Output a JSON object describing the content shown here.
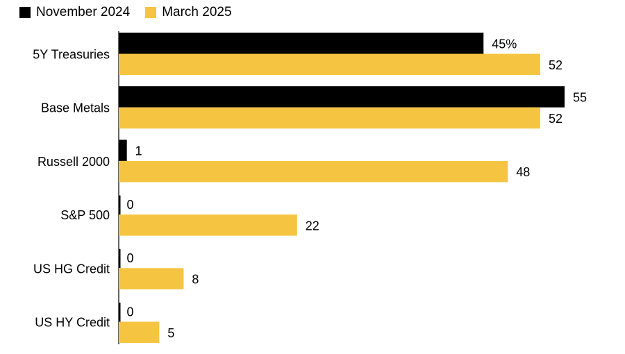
{
  "chart_data": {
    "type": "bar",
    "orientation": "horizontal",
    "categories": [
      "5Y Treasuries",
      "Base Metals",
      "Russell 2000",
      "S&P 500",
      "US HG Credit",
      "US HY Credit"
    ],
    "series": [
      {
        "name": "November 2024",
        "color": "#000000",
        "values": [
          45,
          55,
          1,
          0,
          0,
          0
        ],
        "labels": [
          "45%",
          "55",
          "1",
          "0",
          "0",
          "0"
        ]
      },
      {
        "name": "March 2025",
        "color": "#F5C542",
        "values": [
          52,
          52,
          48,
          22,
          8,
          5
        ],
        "labels": [
          "52",
          "52",
          "48",
          "22",
          "8",
          "5"
        ]
      }
    ],
    "xlim": [
      0,
      55
    ],
    "grid": false,
    "legend_position": "top-left"
  }
}
